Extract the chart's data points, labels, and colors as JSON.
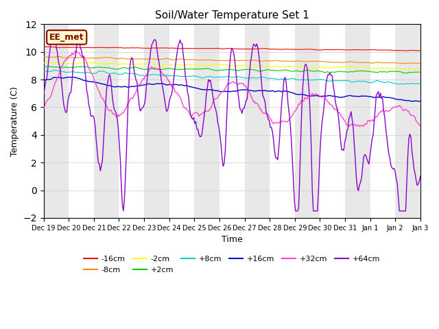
{
  "title": "Soil/Water Temperature Set 1",
  "xlabel": "Time",
  "ylabel": "Temperature (C)",
  "ylim": [
    -2,
    12
  ],
  "yticks": [
    -2,
    0,
    2,
    4,
    6,
    8,
    10,
    12
  ],
  "annotation_text": "EE_met",
  "annotation_bbox_facecolor": "#ffffcc",
  "annotation_bbox_edgecolor": "#8B0000",
  "series": [
    {
      "label": "-16cm",
      "color": "#ff0000"
    },
    {
      "label": "-8cm",
      "color": "#ff8800"
    },
    {
      "label": "-2cm",
      "color": "#ffff00"
    },
    {
      "label": "+2cm",
      "color": "#00cc00"
    },
    {
      "label": "+8cm",
      "color": "#00cccc"
    },
    {
      "label": "+16cm",
      "color": "#0000cc"
    },
    {
      "label": "+32cm",
      "color": "#ff44cc"
    },
    {
      "label": "+64cm",
      "color": "#8800cc"
    }
  ],
  "xtick_labels": [
    "Dec 19",
    "Dec 20",
    "Dec 21",
    "Dec 22",
    "Dec 23",
    "Dec 24",
    "Dec 25",
    "Dec 26",
    "Dec 27",
    "Dec 28",
    "Dec 29",
    "Dec 30",
    "Dec 31",
    "Jan 1",
    "Jan 2",
    "Jan 3"
  ],
  "background_alternating_colors": [
    "#e8e8e8",
    "#ffffff"
  ],
  "grid_color": "#cccccc",
  "legend_row1": [
    "-16cm",
    "-8cm",
    "-2cm",
    "+2cm",
    "+8cm",
    "+16cm"
  ],
  "legend_row2": [
    "+32cm",
    "+64cm"
  ]
}
